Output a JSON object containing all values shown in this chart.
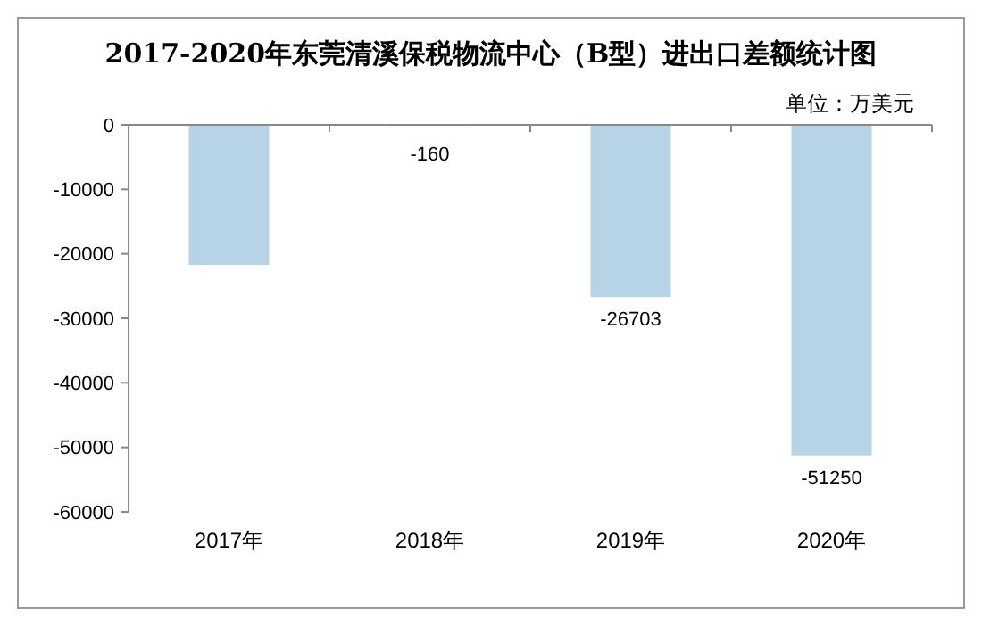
{
  "chart_data": {
    "type": "bar",
    "title": "2017-2020年东莞清溪保税物流中心（B型）进出口差额统计图",
    "annotations": [
      "单位：万美元"
    ],
    "categories": [
      "2017年",
      "2018年",
      "2019年",
      "2020年"
    ],
    "values": [
      -21700,
      -160,
      -26703,
      -51250
    ],
    "value_labels": [
      null,
      "-160",
      "-26703",
      "-51250"
    ],
    "color": "#b7d3e6",
    "ylim": [
      -60000,
      0
    ],
    "yticks": [
      -60000,
      -50000,
      -40000,
      -30000,
      -20000,
      -10000,
      0
    ],
    "grid": false
  }
}
